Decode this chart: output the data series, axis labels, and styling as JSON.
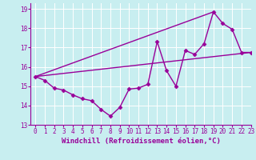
{
  "xlabel": "Windchill (Refroidissement éolien,°C)",
  "ylabel": "",
  "xlim": [
    -0.5,
    23
  ],
  "ylim": [
    13,
    19.3
  ],
  "xticks": [
    0,
    1,
    2,
    3,
    4,
    5,
    6,
    7,
    8,
    9,
    10,
    11,
    12,
    13,
    14,
    15,
    16,
    17,
    18,
    19,
    20,
    21,
    22,
    23
  ],
  "yticks": [
    13,
    14,
    15,
    16,
    17,
    18,
    19
  ],
  "line1_x": [
    0,
    1,
    2,
    3,
    4,
    5,
    6,
    7,
    8,
    9,
    10,
    11,
    12,
    13,
    14,
    15,
    16,
    17,
    18,
    19,
    20,
    21,
    22,
    23
  ],
  "line1_y": [
    15.5,
    15.3,
    14.9,
    14.8,
    14.55,
    14.35,
    14.25,
    13.8,
    13.45,
    13.9,
    14.85,
    14.9,
    15.1,
    17.3,
    15.8,
    15.0,
    16.85,
    16.65,
    17.2,
    18.85,
    18.25,
    17.95,
    16.75,
    16.75
  ],
  "line2_x": [
    0,
    19
  ],
  "line2_y": [
    15.5,
    18.85
  ],
  "line3_x": [
    0,
    23
  ],
  "line3_y": [
    15.5,
    16.75
  ],
  "color": "#990099",
  "bg_color": "#c8eef0",
  "grid_color": "#ffffff",
  "marker": "D",
  "markersize": 2.5,
  "linewidth": 1.0,
  "tick_fontsize": 5.5,
  "xlabel_fontsize": 6.5
}
